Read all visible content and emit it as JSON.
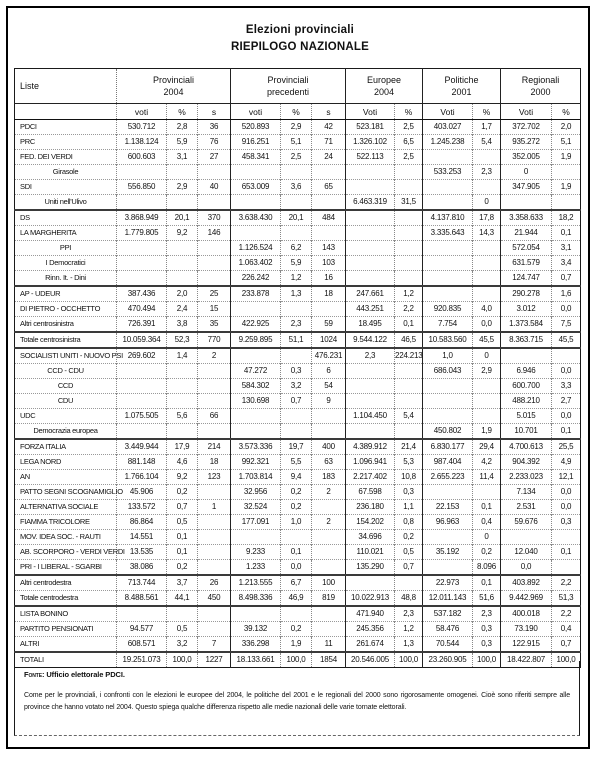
{
  "title": {
    "line1": "Elezioni provinciali",
    "line2": "RIEPILOGO NAZIONALE"
  },
  "table": {
    "liste_header": "Liste",
    "groups": [
      {
        "l1": "Provinciali",
        "l2": "2004"
      },
      {
        "l1": "Provinciali",
        "l2": "precedenti"
      },
      {
        "l1": "Europee",
        "l2": "2004"
      },
      {
        "l1": "Politiche",
        "l2": "2001"
      },
      {
        "l1": "Regionali",
        "l2": "2000"
      }
    ],
    "sub_headers": [
      "voti",
      "%",
      "s",
      "voti",
      "%",
      "s",
      "Voti",
      "%",
      "Voti",
      "%",
      "Voti",
      "%"
    ],
    "rows": [
      {
        "label": "PDCI",
        "cells": [
          "530.712",
          "2,8",
          "36",
          "520.893",
          "2,9",
          "42",
          "523.181",
          "2,5",
          "403.027",
          "1,7",
          "372.702",
          "2,0"
        ]
      },
      {
        "label": "PRC",
        "cells": [
          "1.138.124",
          "5,9",
          "76",
          "916.251",
          "5,1",
          "71",
          "1.326.102",
          "6,5",
          "1.245.238",
          "5,4",
          "935.272",
          "5,1"
        ]
      },
      {
        "label": "FED. DEI VERDI",
        "cells": [
          "600.603",
          "3,1",
          "27",
          "458.341",
          "2,5",
          "24",
          "522.113",
          "2,5",
          "",
          "",
          "352.005",
          "1,9"
        ]
      },
      {
        "label": "Girasole",
        "sub": true,
        "cells": [
          "",
          "",
          "",
          "",
          "",
          "",
          "",
          "",
          "533.253",
          "2,3",
          "0",
          ""
        ]
      },
      {
        "label": "SDI",
        "cells": [
          "556.850",
          "2,9",
          "40",
          "653.009",
          "3,6",
          "65",
          "",
          "",
          "",
          "",
          "347.905",
          "1,9"
        ]
      },
      {
        "label": "Uniti nell'Ulivo",
        "sub": true,
        "cells": [
          "",
          "",
          "",
          "",
          "",
          "",
          "6.463.319",
          "31,5",
          "",
          "0",
          "",
          ""
        ]
      },
      {
        "label": "DS",
        "thick": true,
        "cells": [
          "3.868.949",
          "20,1",
          "370",
          "3.638.430",
          "20,1",
          "484",
          "",
          "",
          "4.137.810",
          "17,8",
          "3.358.633",
          "18,2"
        ]
      },
      {
        "label": "LA MARGHERITA",
        "cells": [
          "1.779.805",
          "9,2",
          "146",
          "",
          "",
          "",
          "",
          "",
          "3.335.643",
          "14,3",
          "21.944",
          "0,1"
        ]
      },
      {
        "label": "PPI",
        "sub": true,
        "cells": [
          "",
          "",
          "",
          "1.126.524",
          "6,2",
          "143",
          "",
          "",
          "",
          "",
          "572.054",
          "3,1"
        ]
      },
      {
        "label": "I Democratici",
        "sub": true,
        "cells": [
          "",
          "",
          "",
          "1.063.402",
          "5,9",
          "103",
          "",
          "",
          "",
          "",
          "631.579",
          "3,4"
        ]
      },
      {
        "label": "Rinn. It. - Dini",
        "sub": true,
        "cells": [
          "",
          "",
          "",
          "226.242",
          "1,2",
          "16",
          "",
          "",
          "",
          "",
          "124.747",
          "0,7"
        ]
      },
      {
        "label": "AP - UDEUR",
        "thick": true,
        "cells": [
          "387.436",
          "2,0",
          "25",
          "233.878",
          "1,3",
          "18",
          "247.661",
          "1,2",
          "",
          "",
          "290.278",
          "1,6"
        ]
      },
      {
        "label": "DI PIETRO - OCCHETTO",
        "cells": [
          "470.494",
          "2,4",
          "15",
          "",
          "",
          "",
          "443.251",
          "2,2",
          "920.835",
          "4,0",
          "3.012",
          "0,0"
        ]
      },
      {
        "label": "Altri centrosinistra",
        "cells": [
          "726.391",
          "3,8",
          "35",
          "422.925",
          "2,3",
          "59",
          "18.495",
          "0,1",
          "7.754",
          "0,0",
          "1.373.584",
          "7,5"
        ]
      },
      {
        "label": "Totale centrosinistra",
        "thick": true,
        "cells": [
          "10.059.364",
          "52,3",
          "770",
          "9.259.895",
          "51,1",
          "1024",
          "9.544.122",
          "46,5",
          "10.583.560",
          "45,5",
          "8.363.715",
          "45,5"
        ]
      },
      {
        "label": "SOCIALISTI UNITI - NUOVO PSI",
        "thick": true,
        "cells": [
          "269.602",
          "1,4",
          "2",
          "",
          "",
          "476.231",
          "2,3",
          "224.213",
          "1,0",
          "0",
          "",
          ""
        ]
      },
      {
        "label": "CCD - CDU",
        "sub": true,
        "cells": [
          "",
          "",
          "",
          "47.272",
          "0,3",
          "6",
          "",
          "",
          "686.043",
          "2,9",
          "6.946",
          "0,0"
        ]
      },
      {
        "label": "CCD",
        "sub": true,
        "cells": [
          "",
          "",
          "",
          "584.302",
          "3,2",
          "54",
          "",
          "",
          "",
          "",
          "600.700",
          "3,3"
        ]
      },
      {
        "label": "CDU",
        "sub": true,
        "cells": [
          "",
          "",
          "",
          "130.698",
          "0,7",
          "9",
          "",
          "",
          "",
          "",
          "488.210",
          "2,7"
        ]
      },
      {
        "label": "UDC",
        "cells": [
          "1.075.505",
          "5,6",
          "66",
          "",
          "",
          "",
          "1.104.450",
          "5,4",
          "",
          "",
          "5.015",
          "0,0"
        ]
      },
      {
        "label": "Democrazia europea",
        "sub": true,
        "cells": [
          "",
          "",
          "",
          "",
          "",
          "",
          "",
          "",
          "450.802",
          "1,9",
          "10.701",
          "0,1"
        ]
      },
      {
        "label": "FORZA ITALIA",
        "thick": true,
        "cells": [
          "3.449.944",
          "17,9",
          "214",
          "3.573.336",
          "19,7",
          "400",
          "4.389.912",
          "21,4",
          "6.830.177",
          "29,4",
          "4.700.613",
          "25,5"
        ]
      },
      {
        "label": "LEGA NORD",
        "cells": [
          "881.148",
          "4,6",
          "18",
          "992.321",
          "5,5",
          "63",
          "1.096.941",
          "5,3",
          "987.404",
          "4,2",
          "904.392",
          "4,9"
        ]
      },
      {
        "label": "AN",
        "cells": [
          "1.766.104",
          "9,2",
          "123",
          "1.703.814",
          "9,4",
          "183",
          "2.217.402",
          "10,8",
          "2.655.223",
          "11,4",
          "2.233.023",
          "12,1"
        ]
      },
      {
        "label": "PATTO SEGNI SCOGNAMIGLIO",
        "cells": [
          "45.906",
          "0,2",
          "",
          "32.956",
          "0,2",
          "2",
          "67.598",
          "0,3",
          "",
          "",
          "7.134",
          "0,0"
        ]
      },
      {
        "label": "ALTERNATIVA SOCIALE",
        "cells": [
          "133.572",
          "0,7",
          "1",
          "32.524",
          "0,2",
          "",
          "236.180",
          "1,1",
          "22.153",
          "0,1",
          "2.531",
          "0,0"
        ]
      },
      {
        "label": "FIAMMA TRICOLORE",
        "cells": [
          "86.864",
          "0,5",
          "",
          "177.091",
          "1,0",
          "2",
          "154.202",
          "0,8",
          "96.963",
          "0,4",
          "59.676",
          "0,3"
        ]
      },
      {
        "label": "MOV. IDEA SOC. - RAUTI",
        "cells": [
          "14.551",
          "0,1",
          "",
          "",
          "",
          "",
          "34.696",
          "0,2",
          "",
          "0",
          "",
          ""
        ]
      },
      {
        "label": "AB. SCORPORO - VERDI VERDI",
        "cells": [
          "13.535",
          "0,1",
          "",
          "9.233",
          "0,1",
          "",
          "110.021",
          "0,5",
          "35.192",
          "0,2",
          "12.040",
          "0,1"
        ]
      },
      {
        "label": "PRI - I LIBERAL - SGARBI",
        "cells": [
          "38.086",
          "0,2",
          "",
          "1.233",
          "0,0",
          "",
          "135.290",
          "0,7",
          "",
          "8.096",
          "0,0",
          ""
        ]
      },
      {
        "label": "Altri centrodestra",
        "thick": true,
        "cells": [
          "713.744",
          "3,7",
          "26",
          "1.213.555",
          "6,7",
          "100",
          "",
          "",
          "22.973",
          "0,1",
          "403.892",
          "2,2"
        ]
      },
      {
        "label": "Totale centrodestra",
        "cells": [
          "8.488.561",
          "44,1",
          "450",
          "8.498.336",
          "46,9",
          "819",
          "10.022.913",
          "48,8",
          "12.011.143",
          "51,6",
          "9.442.969",
          "51,3"
        ]
      },
      {
        "label": "LISTA BONINO",
        "thick": true,
        "cells": [
          "",
          "",
          "",
          "",
          "",
          "",
          "471.940",
          "2,3",
          "537.182",
          "2,3",
          "400.018",
          "2,2"
        ]
      },
      {
        "label": "PARTITO PENSIONATI",
        "cells": [
          "94.577",
          "0,5",
          "",
          "39.132",
          "0,2",
          "",
          "245.356",
          "1,2",
          "58.476",
          "0,3",
          "73.190",
          "0,4"
        ]
      },
      {
        "label": "ALTRI",
        "cells": [
          "608.571",
          "3,2",
          "7",
          "336.298",
          "1,9",
          "11",
          "261.674",
          "1,3",
          "70.544",
          "0,3",
          "122.915",
          "0,7"
        ]
      },
      {
        "label": "TOTALI",
        "thick": true,
        "cells": [
          "19.251.073",
          "100,0",
          "1227",
          "18.133.661",
          "100,0",
          "1854",
          "20.546.005",
          "100,0",
          "23.260.905",
          "100,0",
          "18.422.807",
          "100,0"
        ]
      }
    ]
  },
  "footer": {
    "source_label": "Fonte:",
    "source_text": "Ufficio elettorale PDCI.",
    "note": "Come per le provinciali, i confronti con le elezioni le europee del 2004, le politiche del 2001 e le regionali del 2000 sono rigorosamente omogenei. Cioè sono riferiti sempre alle province che hanno votato nel 2004. Questo spiega qualche differenza rispetto alle medie nazionali delle varie tornate elettorali."
  }
}
